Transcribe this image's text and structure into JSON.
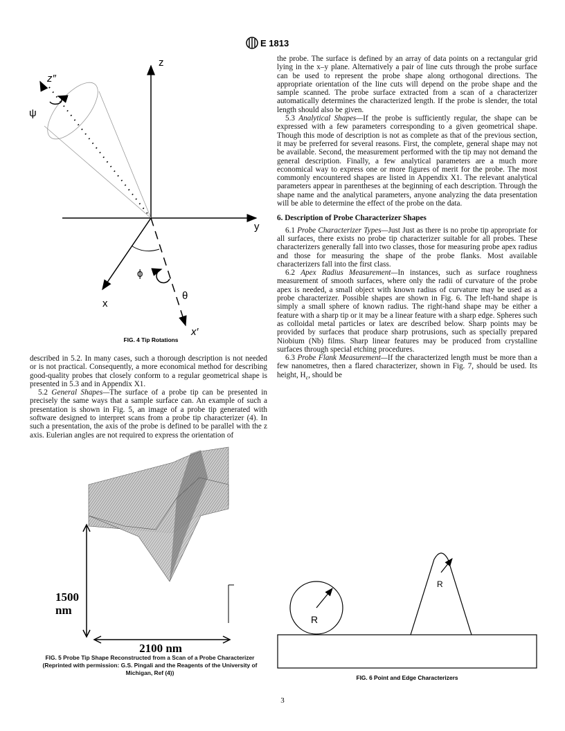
{
  "header": {
    "code": "E 1813"
  },
  "figure4": {
    "labels": {
      "z": "z",
      "z2": "z″",
      "psi": "ψ",
      "y": "y",
      "x": "x",
      "phi": "ϕ",
      "theta": "θ",
      "xp": "x′"
    },
    "caption": "FIG. 4 Tip Rotations"
  },
  "figure5": {
    "height_label": "1500",
    "height_unit": "nm",
    "width_label": "2100 nm",
    "caption": "FIG. 5 Probe Tip Shape Reconstructed from a Scan of a Probe Characterizer (Reprinted with permission: G.S. Pingali and the Reagents of the University of Michigan, Ref (4))"
  },
  "figure6": {
    "label_left": "R",
    "label_right": "R",
    "caption": "FIG. 6 Point and Edge Characterizers"
  },
  "left_column": {
    "paragraphs": [
      {
        "text": "described in 5.2. In many cases, such a thorough description is not needed or is not practical. Consequently, a more economical method for describing good-quality probes that closely conform to a regular geometrical shape is presented in 5.3 and in Appendix X1."
      },
      {
        "number": "5.2",
        "title": "General Shapes—",
        "text": "The surface of a probe tip can be presented in precisely the same ways that a sample surface can. An example of such a presentation is shown in Fig. 5, an image of a probe tip generated with software designed to interpret scans from a probe tip characterizer (4). In such a presentation, the axis of the probe is defined to be parallel with the z axis. Eulerian angles are not required to express the orientation of"
      }
    ]
  },
  "right_column": {
    "paragraphs": [
      {
        "text": "the probe. The surface is defined by an array of data points on a rectangular grid lying in the x–y plane. Alternatively a pair of line cuts through the probe surface can be used to represent the probe shape along orthogonal directions. The appropriate orientation of the line cuts will depend on the probe shape and the sample scanned. The probe surface extracted from a scan of a characterizer automatically determines the characterized length. If the probe is slender, the total length should also be given."
      },
      {
        "number": "5.3",
        "title": "Analytical Shapes—",
        "text": "If the probe is sufficiently regular, the shape can be expressed with a few parameters corresponding to a given geometrical shape. Though this mode of description is not as complete as that of the previous section, it may be preferred for several reasons. First, the complete, general shape may not be available. Second, the measurement performed with the tip may not demand the general description. Finally, a few analytical parameters are a much more economical way to express one or more figures of merit for the probe. The most commonly encountered shapes are listed in Appendix X1. The relevant analytical parameters appear in parentheses at the beginning of each description. Through the shape name and the analytical parameters, anyone analyzing the data presentation will be able to determine the effect of the probe on the data."
      },
      {
        "heading": "6. Description of Probe Characterizer Shapes"
      },
      {
        "number": "6.1",
        "title": "Probe Characterizer Types—",
        "text": "Just Just as there is no probe tip appropriate for all surfaces, there exists no probe tip characterizer suitable for all probes. These characterizers generally fall into two classes, those for measuring probe apex radius and those for measuring the shape of the probe flanks. Most available characterizers fall into the first class."
      },
      {
        "number": "6.2",
        "title": "Apex Radius Measurement—",
        "text": "In instances, such as surface roughness measurement of smooth surfaces, where only the radii of curvature of the probe apex is needed, a small object with known radius of curvature may be used as a probe characterizer. Possible shapes are shown in Fig. 6. The left-hand shape is simply a small sphere of known radius. The right-hand shape may be either a feature with a sharp tip or it may be a linear feature with a sharp edge. Spheres such as colloidal metal particles or latex are described below. Sharp points may be provided by surfaces that produce sharp protrusions, such as specially prepared Niobium (Nb) films. Sharp linear features may be produced from crystalline surfaces through special etching procedures."
      },
      {
        "number": "6.3",
        "title": "Probe Flank Measurement—",
        "text": "If the characterized length must be more than a few nanometres, then a flared characterizer, shown in Fig. 7, should be used. Its height, H",
        "subscript": "c",
        "text_end": ", should be"
      }
    ]
  },
  "footer": {
    "page": "3"
  }
}
